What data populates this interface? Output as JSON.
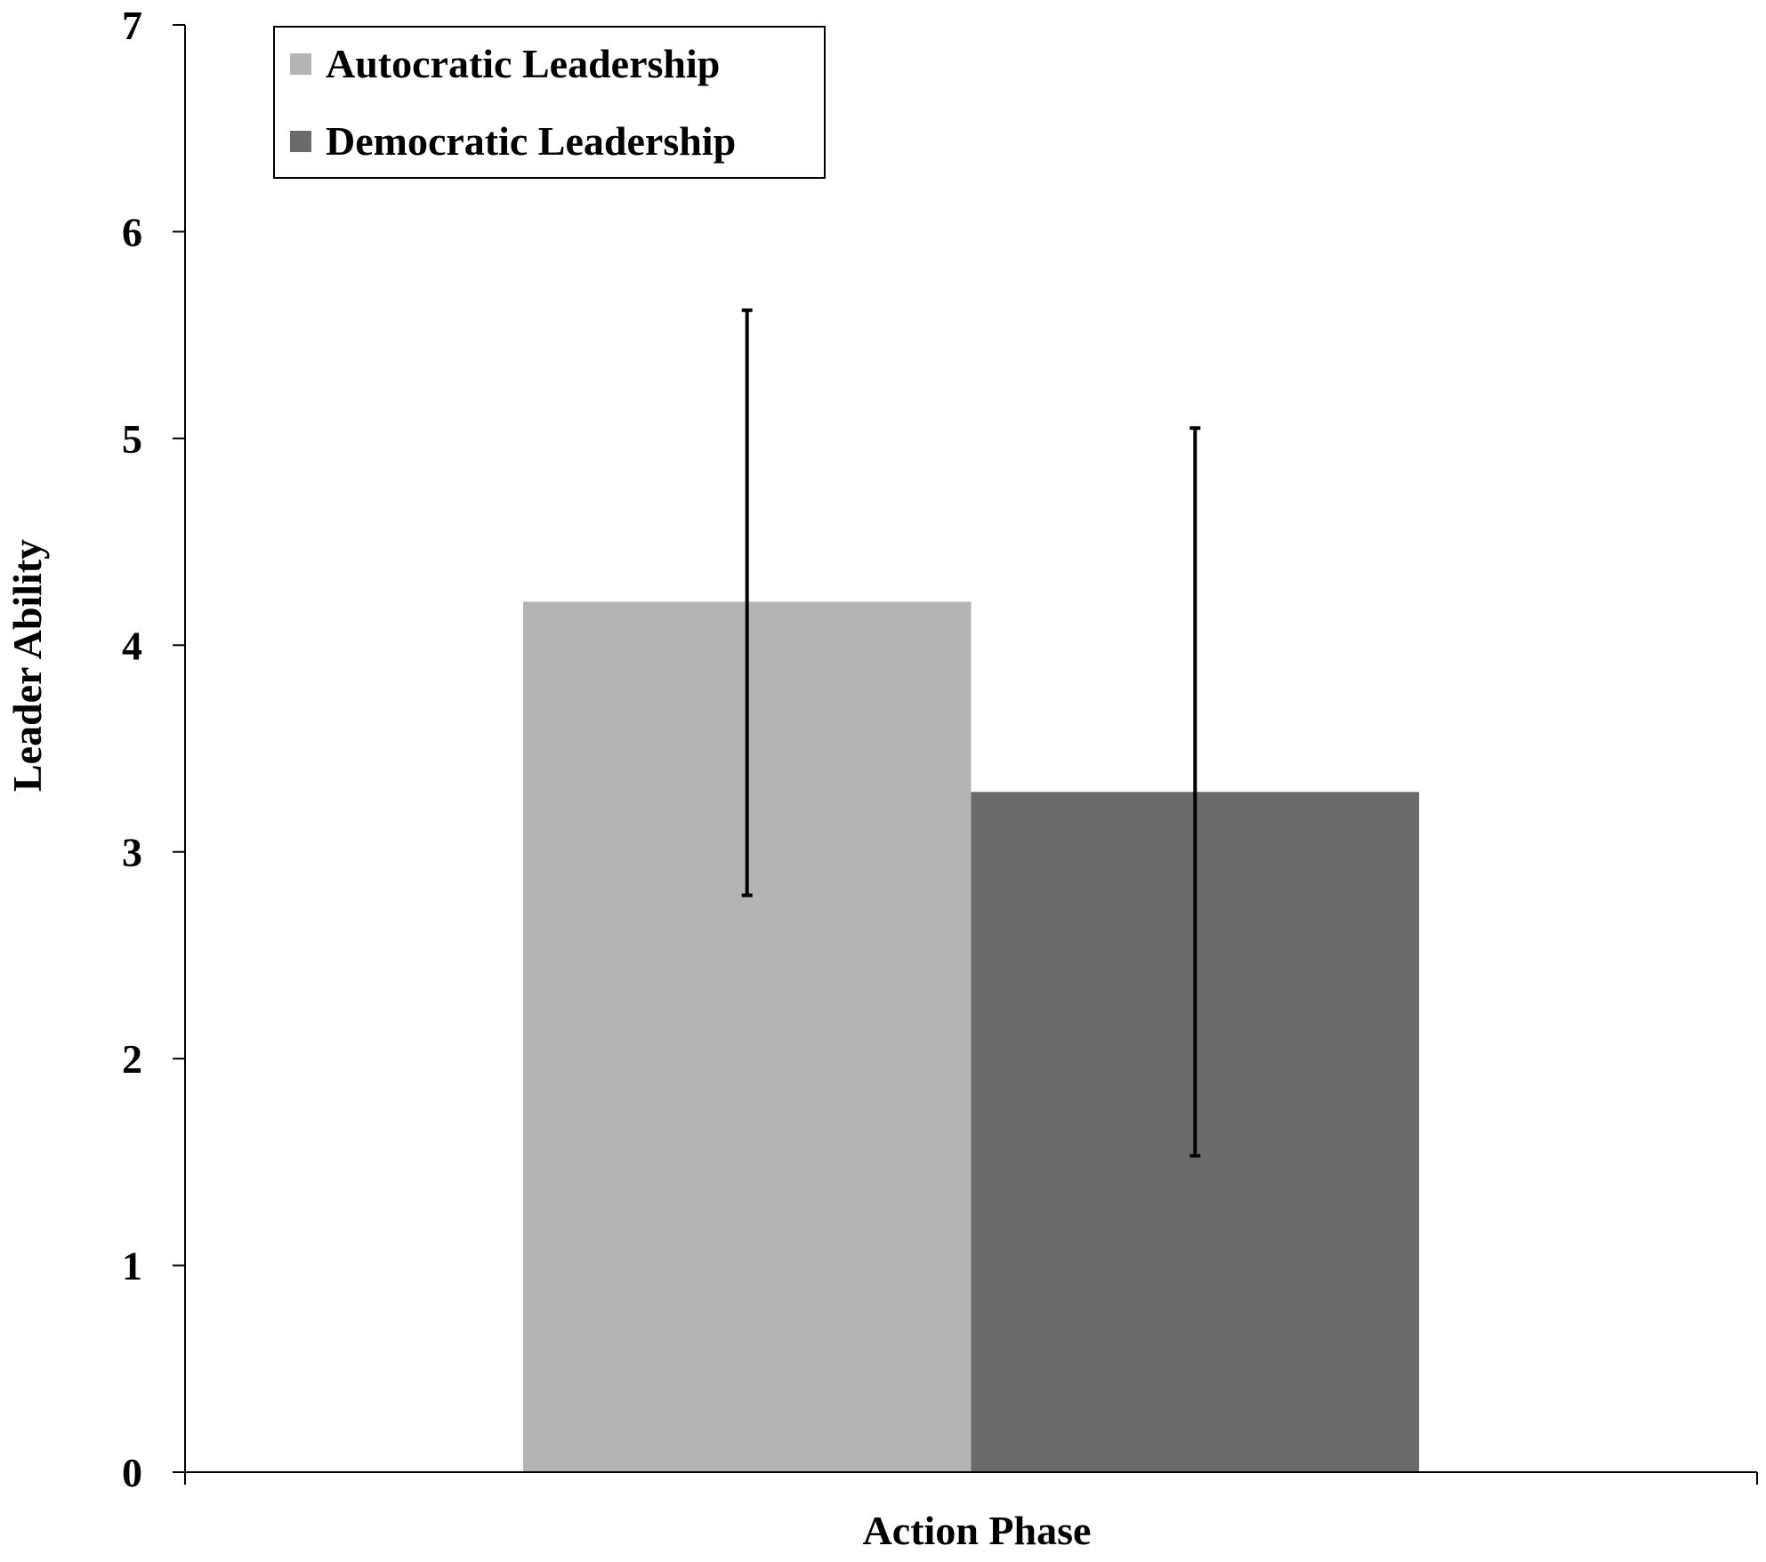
{
  "chart_data": {
    "type": "bar",
    "categories": [
      "Action Phase"
    ],
    "series": [
      {
        "name": "Autocratic Leadership",
        "values": [
          4.21
        ],
        "error_low": [
          2.79
        ],
        "error_high": [
          5.62
        ],
        "color": "#b4b4b4"
      },
      {
        "name": "Democratic Leadership",
        "values": [
          3.29
        ],
        "error_low": [
          1.53
        ],
        "error_high": [
          5.05
        ],
        "color": "#6b6b6b"
      }
    ],
    "xlabel": "Action Phase",
    "ylabel": "Leader Ability",
    "ylim": [
      0,
      7
    ],
    "yticks": [
      "0",
      "1",
      "2",
      "3",
      "4",
      "5",
      "6",
      "7"
    ],
    "grid": false,
    "legend_position": "top-left"
  }
}
